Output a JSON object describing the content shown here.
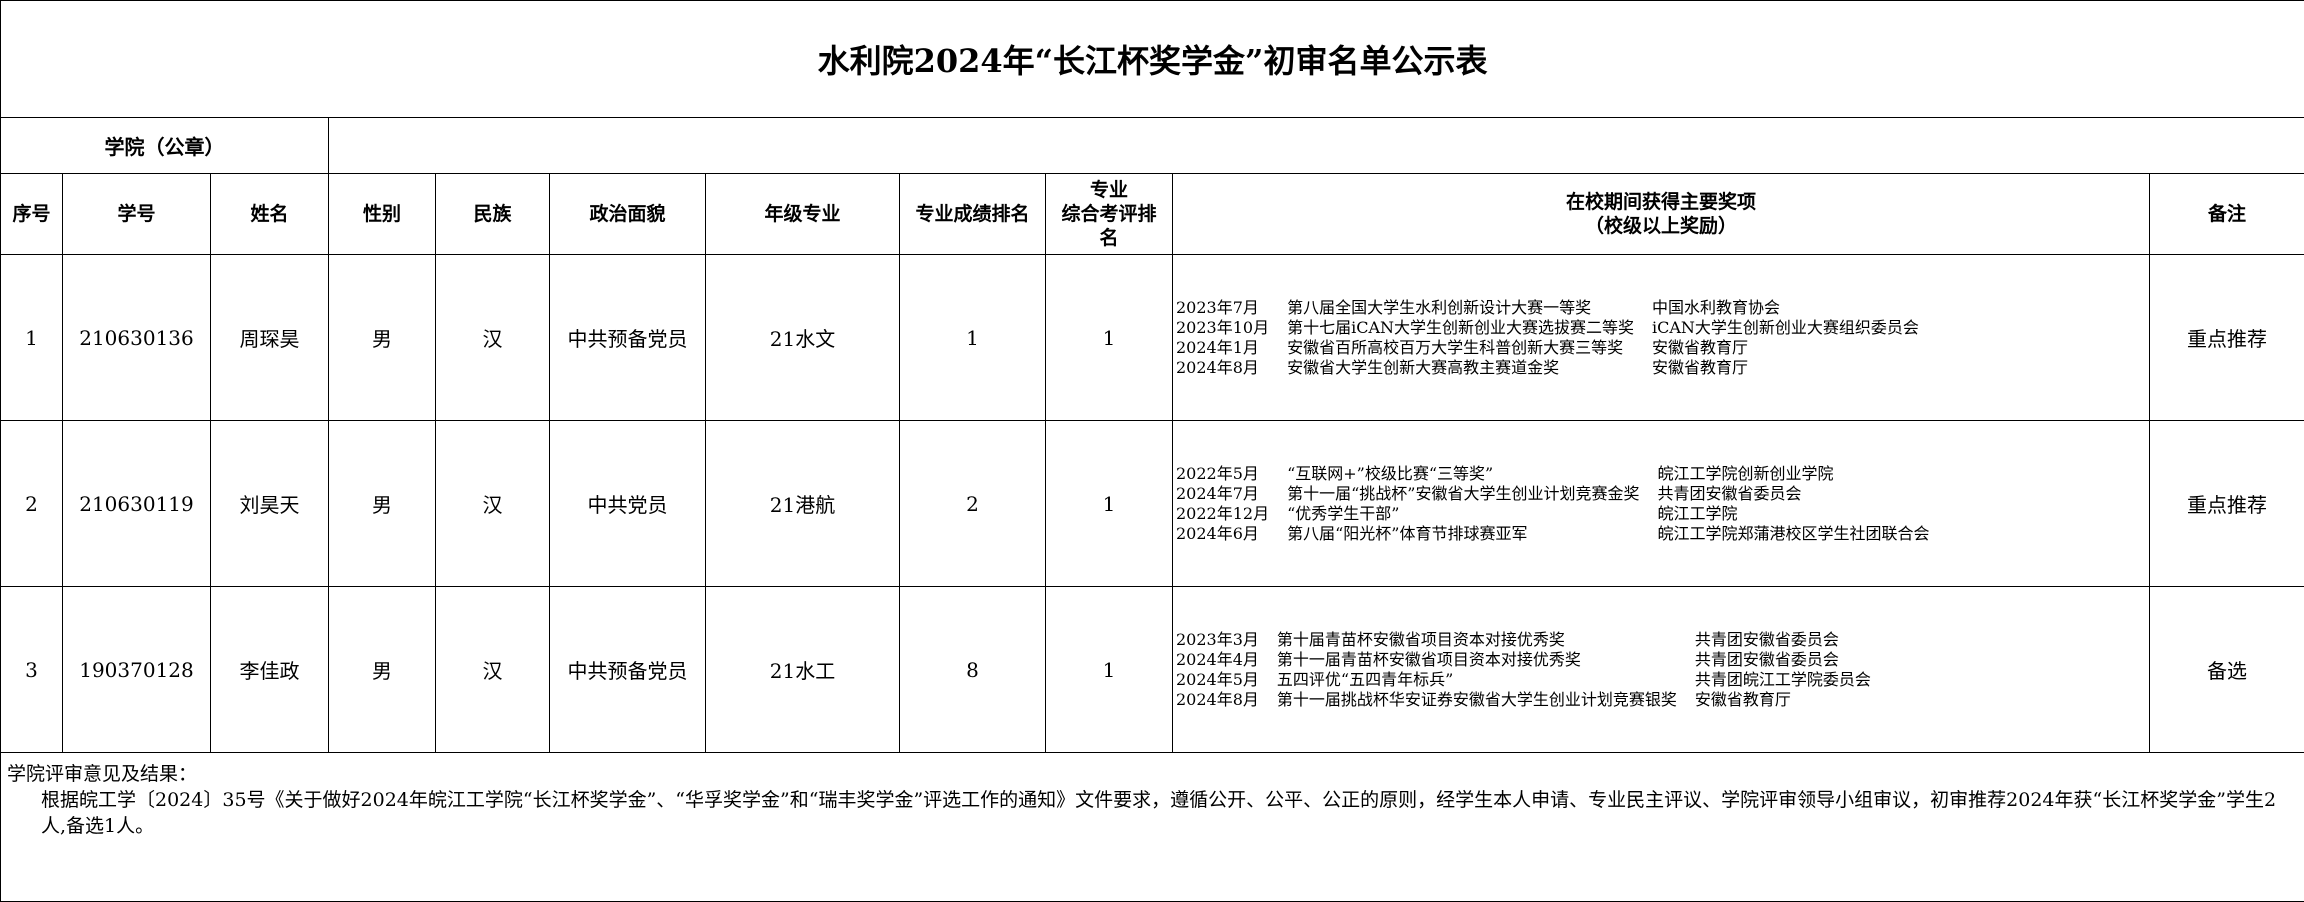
{
  "title": "水利院2024年“长江杯奖学金”初审名单公示表",
  "college_seal_label": "学院（公章）",
  "headers": {
    "seq": "序号",
    "student_id": "学号",
    "name": "姓名",
    "gender": "性别",
    "ethnicity": "民族",
    "political_status": "政治面貌",
    "grade_major": "年级专业",
    "score_rank": "专业成绩排名",
    "overall_rank_line1": "专业",
    "overall_rank_line2": "综合考评排",
    "overall_rank_line3": "名",
    "awards_line1": "在校期间获得主要奖项",
    "awards_line2": "（校级以上奖励）",
    "remark": "备注"
  },
  "rows": [
    {
      "seq": "1",
      "student_id": "210630136",
      "name": "周琛昊",
      "gender": "男",
      "ethnicity": "汉",
      "political_status": "中共预备党员",
      "grade_major": "21水文",
      "score_rank": "1",
      "overall_rank": "1",
      "remark": "重点推荐",
      "awards": [
        {
          "date": "2023年7月",
          "award": "第八届全国大学生水利创新设计大赛一等奖",
          "org": "中国水利教育协会"
        },
        {
          "date": "2023年10月",
          "award": "第十七届iCAN大学生创新创业大赛选拔赛二等奖",
          "org": "iCAN大学生创新创业大赛组织委员会"
        },
        {
          "date": "2024年1月",
          "award": "安徽省百所高校百万大学生科普创新大赛三等奖",
          "org": "安徽省教育厅"
        },
        {
          "date": "2024年8月",
          "award": "安徽省大学生创新大赛高教主赛道金奖",
          "org": "安徽省教育厅"
        }
      ]
    },
    {
      "seq": "2",
      "student_id": "210630119",
      "name": "刘昊天",
      "gender": "男",
      "ethnicity": "汉",
      "political_status": "中共党员",
      "grade_major": "21港航",
      "score_rank": "2",
      "overall_rank": "1",
      "remark": "重点推荐",
      "awards": [
        {
          "date": "2022年5月",
          "award": "“互联网+”校级比赛“三等奖”",
          "org": "皖江工学院创新创业学院"
        },
        {
          "date": "2024年7月",
          "award": "第十一届“挑战杯”安徽省大学生创业计划竞赛金奖",
          "org": "共青团安徽省委员会"
        },
        {
          "date": "2022年12月",
          "award": "“优秀学生干部”",
          "org": "皖江工学院"
        },
        {
          "date": "2024年6月",
          "award": "第八届“阳光杯”体育节排球赛亚军",
          "org": "皖江工学院郑蒲港校区学生社团联合会"
        }
      ]
    },
    {
      "seq": "3",
      "student_id": "190370128",
      "name": "李佳政",
      "gender": "男",
      "ethnicity": "汉",
      "political_status": "中共预备党员",
      "grade_major": "21水工",
      "score_rank": "8",
      "overall_rank": "1",
      "remark": "备选",
      "awards": [
        {
          "date": "2023年3月",
          "award": "第十届青苗杯安徽省项目资本对接优秀奖",
          "org": "共青团安徽省委员会"
        },
        {
          "date": "2024年4月",
          "award": "第十一届青苗杯安徽省项目资本对接优秀奖",
          "org": "共青团安徽省委员会"
        },
        {
          "date": "2024年5月",
          "award": "五四评优“五四青年标兵”",
          "org": "共青团皖江工学院委员会"
        },
        {
          "date": "2024年8月",
          "award": "第十一届挑战杯华安证券安徽省大学生创业计划竞赛银奖",
          "org": "安徽省教育厅"
        }
      ]
    }
  ],
  "footer": {
    "label": "学院评审意见及结果：",
    "text": "根据皖工学〔2024〕35号《关于做好2024年皖江工学院“长江杯奖学金”、“华孚奖学金”和“瑞丰奖学金”评选工作的通知》文件要求，遵循公开、公平、公正的原则，经学生本人申请、专业民主评议、学院评审领导小组审议，初审推荐2024年获“长江杯奖学金”学生2人,备选1人。"
  }
}
